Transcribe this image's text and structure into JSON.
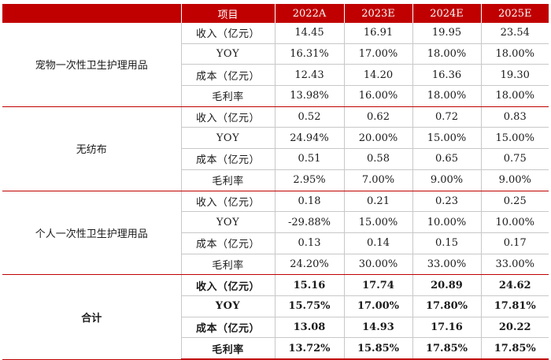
{
  "header": {
    "item": "项目",
    "years": [
      "2022A",
      "2023E",
      "2024E",
      "2025E"
    ]
  },
  "groups": [
    {
      "segment": "宠物一次性卫生护理用品",
      "rows": [
        {
          "metric": "收入（亿元）",
          "values": [
            "14.45",
            "16.91",
            "19.95",
            "23.54"
          ]
        },
        {
          "metric": "YOY",
          "values": [
            "16.31%",
            "17.00%",
            "18.00%",
            "18.00%"
          ]
        },
        {
          "metric": "成本（亿元）",
          "values": [
            "12.43",
            "14.20",
            "16.36",
            "19.30"
          ]
        },
        {
          "metric": "毛利率",
          "values": [
            "13.98%",
            "16.00%",
            "18.00%",
            "18.00%"
          ]
        }
      ]
    },
    {
      "segment": "无纺布",
      "rows": [
        {
          "metric": "收入（亿元）",
          "values": [
            "0.52",
            "0.62",
            "0.72",
            "0.83"
          ]
        },
        {
          "metric": "YOY",
          "values": [
            "24.94%",
            "20.00%",
            "15.00%",
            "15.00%"
          ]
        },
        {
          "metric": "成本（亿元）",
          "values": [
            "0.51",
            "0.58",
            "0.65",
            "0.75"
          ]
        },
        {
          "metric": "毛利率",
          "values": [
            "2.95%",
            "7.00%",
            "9.00%",
            "9.00%"
          ]
        }
      ]
    },
    {
      "segment": "个人一次性卫生护理用品",
      "rows": [
        {
          "metric": "收入（亿元）",
          "values": [
            "0.18",
            "0.21",
            "0.23",
            "0.25"
          ]
        },
        {
          "metric": "YOY",
          "values": [
            "-29.88%",
            "15.00%",
            "10.00%",
            "10.00%"
          ]
        },
        {
          "metric": "成本（亿元）",
          "values": [
            "0.13",
            "0.14",
            "0.15",
            "0.17"
          ]
        },
        {
          "metric": "毛利率",
          "values": [
            "24.20%",
            "30.00%",
            "33.00%",
            "33.00%"
          ]
        }
      ]
    },
    {
      "segment": "合计",
      "total": true,
      "rows": [
        {
          "metric": "收入（亿元）",
          "values": [
            "15.16",
            "17.74",
            "20.89",
            "24.62"
          ]
        },
        {
          "metric": "YOY",
          "values": [
            "15.75%",
            "17.00%",
            "17.80%",
            "17.81%"
          ]
        },
        {
          "metric": "成本（亿元）",
          "values": [
            "13.08",
            "14.93",
            "17.16",
            "20.22"
          ]
        },
        {
          "metric": "毛利率",
          "values": [
            "13.72%",
            "15.85%",
            "17.85%",
            "17.85%"
          ]
        }
      ]
    }
  ],
  "colors": {
    "header_bg": "#c00000",
    "header_text": "#ffffff",
    "grid": "#c8c8c8",
    "group_separator": "#c00000"
  }
}
